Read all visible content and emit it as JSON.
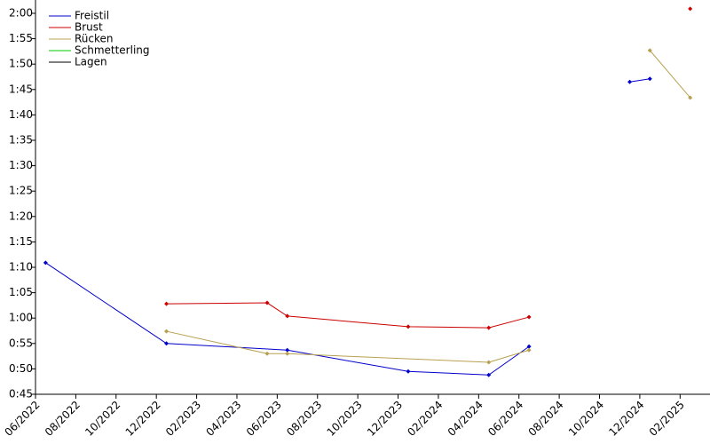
{
  "chart_data": {
    "type": "line",
    "ylim": [
      45,
      120
    ],
    "yticks": [
      {
        "value": 45,
        "label": "0:45"
      },
      {
        "value": 50,
        "label": "0:50"
      },
      {
        "value": 55,
        "label": "0:55"
      },
      {
        "value": 60,
        "label": "1:00"
      },
      {
        "value": 65,
        "label": "1:05"
      },
      {
        "value": 70,
        "label": "1:10"
      },
      {
        "value": 75,
        "label": "1:15"
      },
      {
        "value": 80,
        "label": "1:20"
      },
      {
        "value": 85,
        "label": "1:25"
      },
      {
        "value": 90,
        "label": "1:30"
      },
      {
        "value": 95,
        "label": "1:35"
      },
      {
        "value": 100,
        "label": "1:40"
      },
      {
        "value": 105,
        "label": "1:45"
      },
      {
        "value": 110,
        "label": "1:50"
      },
      {
        "value": 115,
        "label": "1:55"
      },
      {
        "value": 120,
        "label": "2:00"
      }
    ],
    "xlim": [
      "2022-06",
      "2025-03"
    ],
    "xticks": [
      {
        "value": "2022-06",
        "label": "06/2022"
      },
      {
        "value": "2022-08",
        "label": "08/2022"
      },
      {
        "value": "2022-10",
        "label": "10/2022"
      },
      {
        "value": "2022-12",
        "label": "12/2022"
      },
      {
        "value": "2023-02",
        "label": "02/2023"
      },
      {
        "value": "2023-04",
        "label": "04/2023"
      },
      {
        "value": "2023-06",
        "label": "06/2023"
      },
      {
        "value": "2023-08",
        "label": "08/2023"
      },
      {
        "value": "2023-10",
        "label": "10/2023"
      },
      {
        "value": "2023-12",
        "label": "12/2023"
      },
      {
        "value": "2024-02",
        "label": "02/2024"
      },
      {
        "value": "2024-04",
        "label": "04/2024"
      },
      {
        "value": "2024-06",
        "label": "06/2024"
      },
      {
        "value": "2024-08",
        "label": "08/2024"
      },
      {
        "value": "2024-10",
        "label": "10/2024"
      },
      {
        "value": "2024-12",
        "label": "12/2024"
      },
      {
        "value": "2025-02",
        "label": "02/2025"
      }
    ],
    "legend": "upper left",
    "series": [
      {
        "name": "Freistil",
        "color": "#0000cc",
        "x": [
          "2022-06",
          "2022-12",
          "2023-06",
          "2023-12",
          "2024-04",
          "2024-06",
          null,
          "2024-11",
          "2024-12"
        ],
        "values": [
          70.9,
          55.0,
          53.7,
          49.5,
          48.8,
          54.4,
          null,
          106.5,
          107.1
        ]
      },
      {
        "name": "Brust",
        "color": "#cc0000",
        "x": [
          "2022-12",
          "2023-05",
          "2023-06",
          "2023-12",
          "2024-04",
          "2024-06",
          null,
          "2025-02"
        ],
        "values": [
          62.8,
          63.0,
          60.4,
          58.3,
          58.1,
          60.2,
          null,
          120.9
        ]
      },
      {
        "name": "Rücken",
        "color": "#b8a050",
        "x": [
          "2022-12",
          "2023-05",
          "2023-06",
          "2024-04",
          "2024-06",
          null,
          "2024-12",
          "2025-02"
        ],
        "values": [
          57.4,
          53.0,
          53.0,
          51.3,
          53.7,
          null,
          112.7,
          103.4
        ]
      },
      {
        "name": "Schmetterling",
        "color": "#00cc00",
        "x": [],
        "values": []
      },
      {
        "name": "Lagen",
        "color": "#000000",
        "x": [],
        "values": []
      }
    ]
  }
}
